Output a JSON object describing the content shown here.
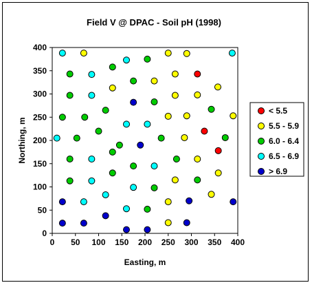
{
  "chart_data": {
    "type": "scatter",
    "title": "Field V @ DPAC - Soil pH (1998)",
    "xlabel": "Easting, m",
    "ylabel": "Northing, m",
    "xlim": [
      0,
      400
    ],
    "ylim": [
      0,
      400
    ],
    "xticks": [
      0,
      50,
      100,
      150,
      200,
      250,
      300,
      350,
      400
    ],
    "yticks": [
      0,
      50,
      100,
      150,
      200,
      250,
      300,
      350,
      400
    ],
    "grid": false,
    "legend_position": "right",
    "series": [
      {
        "name": "< 5.5",
        "color": "#ff0000",
        "points": [
          [
            313,
            343
          ],
          [
            328,
            220
          ],
          [
            358,
            178
          ]
        ]
      },
      {
        "name": "5.5 - 5.9",
        "color": "#ffff00",
        "points": [
          [
            68,
            388
          ],
          [
            250,
            388
          ],
          [
            290,
            387
          ],
          [
            130,
            313
          ],
          [
            220,
            328
          ],
          [
            265,
            343
          ],
          [
            357,
            315
          ],
          [
            265,
            297
          ],
          [
            313,
            298
          ],
          [
            250,
            252
          ],
          [
            290,
            253
          ],
          [
            390,
            253
          ],
          [
            285,
            206
          ],
          [
            313,
            160
          ],
          [
            265,
            115
          ],
          [
            358,
            130
          ],
          [
            343,
            84
          ],
          [
            250,
            68
          ],
          [
            250,
            23
          ]
        ]
      },
      {
        "name": "6.0 - 6.4",
        "color": "#00cc00",
        "points": [
          [
            38,
            343
          ],
          [
            130,
            358
          ],
          [
            205,
            375
          ],
          [
            38,
            297
          ],
          [
            175,
            328
          ],
          [
            22,
            250
          ],
          [
            70,
            250
          ],
          [
            115,
            265
          ],
          [
            220,
            283
          ],
          [
            343,
            267
          ],
          [
            53,
            205
          ],
          [
            100,
            220
          ],
          [
            145,
            190
          ],
          [
            235,
            205
          ],
          [
            373,
            206
          ],
          [
            38,
            160
          ],
          [
            130,
            175
          ],
          [
            268,
            160
          ],
          [
            38,
            113
          ],
          [
            130,
            130
          ],
          [
            175,
            145
          ],
          [
            313,
            115
          ],
          [
            220,
            98
          ],
          [
            205,
            52
          ]
        ]
      },
      {
        "name": "6.5 - 6.9",
        "color": "#00ffff",
        "points": [
          [
            22,
            388
          ],
          [
            160,
            373
          ],
          [
            388,
            388
          ],
          [
            85,
            342
          ],
          [
            85,
            297
          ],
          [
            10,
            205
          ],
          [
            160,
            235
          ],
          [
            205,
            235
          ],
          [
            85,
            160
          ],
          [
            220,
            145
          ],
          [
            85,
            113
          ],
          [
            175,
            99
          ],
          [
            115,
            83
          ],
          [
            68,
            68
          ],
          [
            160,
            53
          ]
        ]
      },
      {
        "name": "> 6.9",
        "color": "#0000cc",
        "points": [
          [
            175,
            282
          ],
          [
            190,
            190
          ],
          [
            22,
            68
          ],
          [
            295,
            70
          ],
          [
            390,
            68
          ],
          [
            115,
            38
          ],
          [
            22,
            22
          ],
          [
            68,
            22
          ],
          [
            290,
            23
          ],
          [
            160,
            8
          ],
          [
            205,
            8
          ]
        ]
      }
    ]
  }
}
